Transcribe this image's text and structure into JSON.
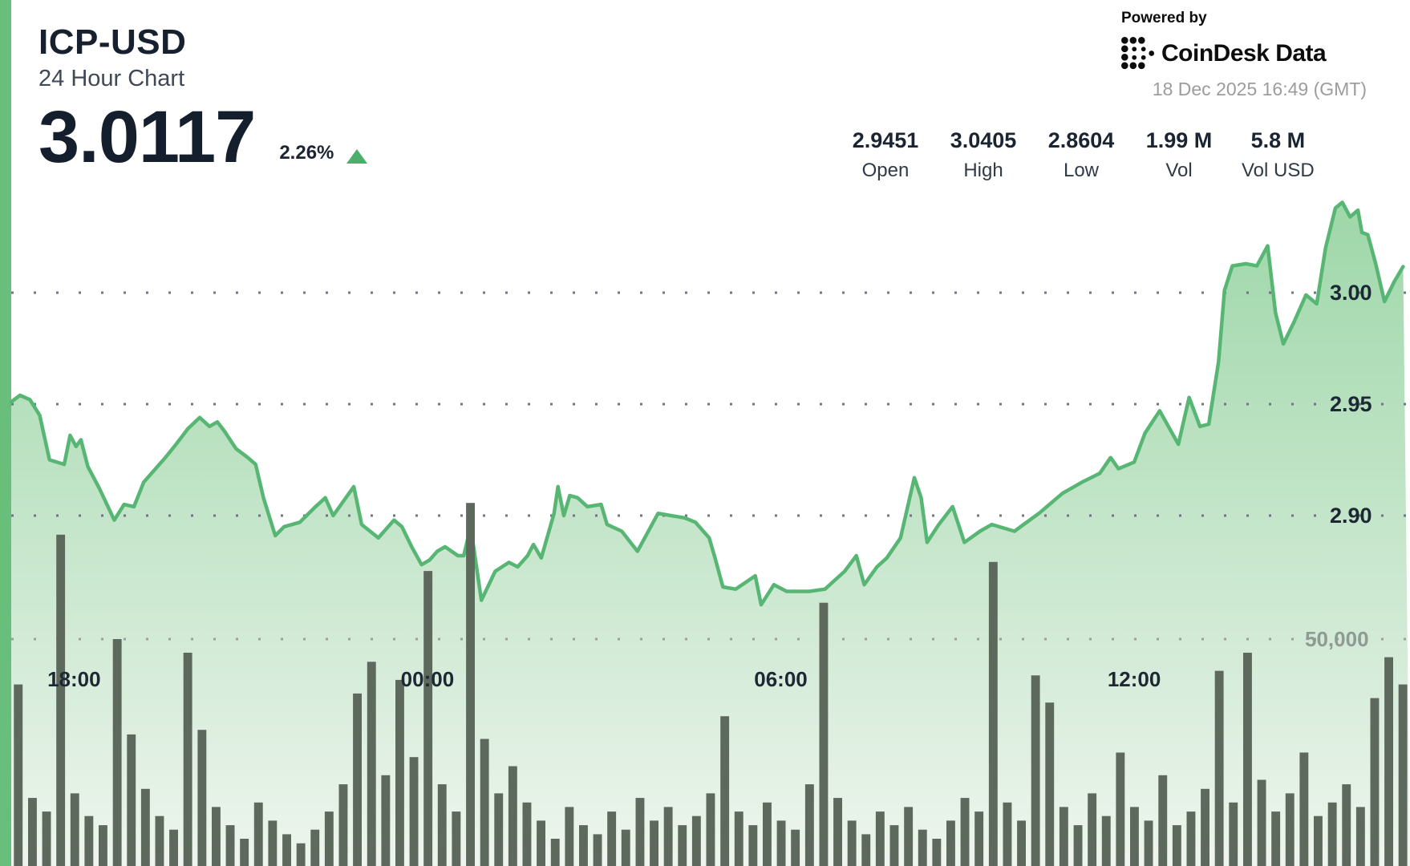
{
  "header": {
    "symbol": "ICP-USD",
    "subtitle": "24 Hour Chart",
    "price": "3.0117",
    "change_percent": "2.26%",
    "change_direction": "up"
  },
  "powered_by": {
    "label": "Powered by",
    "brand": "CoinDesk Data",
    "timestamp": "18 Dec 2025 16:49 (GMT)"
  },
  "stats": [
    {
      "value": "2.9451",
      "label": "Open"
    },
    {
      "value": "3.0405",
      "label": "High"
    },
    {
      "value": "2.8604",
      "label": "Low"
    },
    {
      "value": "1.99 M",
      "label": "Vol"
    },
    {
      "value": "5.8 M",
      "label": "Vol USD"
    }
  ],
  "colors": {
    "accent_bar": "#68bf7c",
    "line": "#57b673",
    "area_top": "#9bd6a6",
    "area_bottom": "#eef5ee",
    "volume_bar": "#5e695d",
    "grid_price": "#6e7680",
    "grid_volume": "#98a19a",
    "label_dark": "#1d2835",
    "label_volume": "#8f9a92",
    "triangle_up": "#4cae6b"
  },
  "chart_data": {
    "type": "line",
    "title": "ICP-USD 24 Hour Chart",
    "legend": false,
    "grid": "dotted-horizontal",
    "x_axis": {
      "start_time": "16:56",
      "total_minutes": 1425,
      "tick_labels": [
        "18:00",
        "00:00",
        "06:00",
        "12:00"
      ]
    },
    "y_axis_price": {
      "side": "right",
      "ticks": [
        3.0,
        2.95,
        2.9
      ],
      "tick_labels": [
        "3.00",
        "2.95",
        "2.90"
      ],
      "ylim": [
        2.845,
        3.055
      ]
    },
    "y_axis_volume": {
      "side": "right",
      "ticks": [
        50000
      ],
      "tick_labels": [
        "50,000"
      ],
      "unit": "thousands"
    },
    "price_series": [
      [
        "16:56",
        2.951
      ],
      [
        "17:05",
        2.954
      ],
      [
        "17:15",
        2.952
      ],
      [
        "17:25",
        2.945
      ],
      [
        "17:35",
        2.925
      ],
      [
        "17:50",
        2.923
      ],
      [
        "17:56",
        2.936
      ],
      [
        "18:02",
        2.931
      ],
      [
        "18:07",
        2.934
      ],
      [
        "18:14",
        2.922
      ],
      [
        "18:26",
        2.912
      ],
      [
        "18:41",
        2.898
      ],
      [
        "18:51",
        2.905
      ],
      [
        "19:01",
        2.904
      ],
      [
        "19:11",
        2.915
      ],
      [
        "19:23",
        2.921
      ],
      [
        "19:33",
        2.926
      ],
      [
        "19:44",
        2.932
      ],
      [
        "19:56",
        2.939
      ],
      [
        "20:08",
        2.944
      ],
      [
        "20:18",
        2.94
      ],
      [
        "20:26",
        2.942
      ],
      [
        "20:33",
        2.938
      ],
      [
        "20:45",
        2.93
      ],
      [
        "20:57",
        2.926
      ],
      [
        "21:05",
        2.923
      ],
      [
        "21:13",
        2.908
      ],
      [
        "21:25",
        2.891
      ],
      [
        "21:34",
        2.895
      ],
      [
        "21:50",
        2.897
      ],
      [
        "22:06",
        2.904
      ],
      [
        "22:16",
        2.908
      ],
      [
        "22:24",
        2.9
      ],
      [
        "22:45",
        2.913
      ],
      [
        "22:53",
        2.896
      ],
      [
        "23:10",
        2.89
      ],
      [
        "23:26",
        2.898
      ],
      [
        "23:34",
        2.895
      ],
      [
        "23:44",
        2.886
      ],
      [
        "23:54",
        2.878
      ],
      [
        "00:02",
        2.88
      ],
      [
        "00:10",
        2.884
      ],
      [
        "00:18",
        2.886
      ],
      [
        "00:31",
        2.882
      ],
      [
        "00:37",
        2.882
      ],
      [
        "00:44",
        2.895
      ],
      [
        "00:55",
        2.862
      ],
      [
        "01:09",
        2.875
      ],
      [
        "01:23",
        2.879
      ],
      [
        "01:32",
        2.877
      ],
      [
        "01:42",
        2.882
      ],
      [
        "01:48",
        2.887
      ],
      [
        "01:56",
        2.881
      ],
      [
        "02:09",
        2.901
      ],
      [
        "02:13",
        2.913
      ],
      [
        "02:19",
        2.9
      ],
      [
        "02:25",
        2.909
      ],
      [
        "02:33",
        2.908
      ],
      [
        "02:43",
        2.904
      ],
      [
        "02:57",
        2.905
      ],
      [
        "03:03",
        2.896
      ],
      [
        "03:18",
        2.893
      ],
      [
        "03:34",
        2.884
      ],
      [
        "03:55",
        2.901
      ],
      [
        "04:08",
        2.9
      ],
      [
        "04:22",
        2.899
      ],
      [
        "04:33",
        2.897
      ],
      [
        "04:47",
        2.89
      ],
      [
        "04:53",
        2.881
      ],
      [
        "05:01",
        2.868
      ],
      [
        "05:14",
        2.867
      ],
      [
        "05:34",
        2.873
      ],
      [
        "05:40",
        2.86
      ],
      [
        "05:53",
        2.869
      ],
      [
        "06:06",
        2.866
      ],
      [
        "06:29",
        2.866
      ],
      [
        "06:45",
        2.867
      ],
      [
        "07:05",
        2.875
      ],
      [
        "07:17",
        2.882
      ],
      [
        "07:25",
        2.869
      ],
      [
        "07:38",
        2.877
      ],
      [
        "07:48",
        2.881
      ],
      [
        "08:02",
        2.89
      ],
      [
        "08:16",
        2.917
      ],
      [
        "08:23",
        2.908
      ],
      [
        "08:29",
        2.888
      ],
      [
        "08:41",
        2.896
      ],
      [
        "08:55",
        2.904
      ],
      [
        "09:07",
        2.888
      ],
      [
        "09:23",
        2.893
      ],
      [
        "09:35",
        2.896
      ],
      [
        "09:58",
        2.893
      ],
      [
        "10:23",
        2.901
      ],
      [
        "10:47",
        2.91
      ],
      [
        "11:07",
        2.915
      ],
      [
        "11:25",
        2.919
      ],
      [
        "11:36",
        2.926
      ],
      [
        "11:44",
        2.921
      ],
      [
        "12:00",
        2.924
      ],
      [
        "12:11",
        2.937
      ],
      [
        "12:26",
        2.947
      ],
      [
        "12:45",
        2.932
      ],
      [
        "12:56",
        2.953
      ],
      [
        "13:07",
        2.94
      ],
      [
        "13:16",
        2.941
      ],
      [
        "13:26",
        2.969
      ],
      [
        "13:32",
        3.001
      ],
      [
        "13:40",
        3.012
      ],
      [
        "13:54",
        3.013
      ],
      [
        "14:05",
        3.012
      ],
      [
        "14:16",
        3.021
      ],
      [
        "14:24",
        2.991
      ],
      [
        "14:32",
        2.977
      ],
      [
        "14:43",
        2.987
      ],
      [
        "14:55",
        2.999
      ],
      [
        "15:06",
        2.995
      ],
      [
        "15:15",
        3.02
      ],
      [
        "15:25",
        3.038
      ],
      [
        "15:32",
        3.0405
      ],
      [
        "15:40",
        3.034
      ],
      [
        "15:48",
        3.037
      ],
      [
        "15:52",
        3.027
      ],
      [
        "15:58",
        3.026
      ],
      [
        "16:06",
        3.013
      ],
      [
        "16:15",
        2.996
      ],
      [
        "16:25",
        3.005
      ],
      [
        "16:34",
        3.0117
      ]
    ],
    "volume_series_thousands": [
      40,
      15,
      12,
      73,
      16,
      11,
      9,
      50,
      29,
      17,
      11,
      8,
      47,
      30,
      13,
      9,
      6,
      14,
      10,
      7,
      5,
      8,
      12,
      18,
      38,
      45,
      20,
      41,
      24,
      65,
      18,
      12,
      80,
      28,
      16,
      22,
      14,
      10,
      6,
      13,
      9,
      7,
      12,
      8,
      15,
      10,
      13,
      9,
      11,
      16,
      33,
      12,
      9,
      14,
      10,
      8,
      18,
      58,
      15,
      10,
      7,
      12,
      9,
      13,
      8,
      6,
      10,
      15,
      12,
      67,
      14,
      10,
      42,
      36,
      13,
      9,
      16,
      11,
      25,
      13,
      10,
      20,
      9,
      12,
      17,
      43,
      14,
      47,
      19,
      12,
      16,
      25,
      11,
      14,
      18,
      13,
      37,
      46,
      40
    ]
  }
}
